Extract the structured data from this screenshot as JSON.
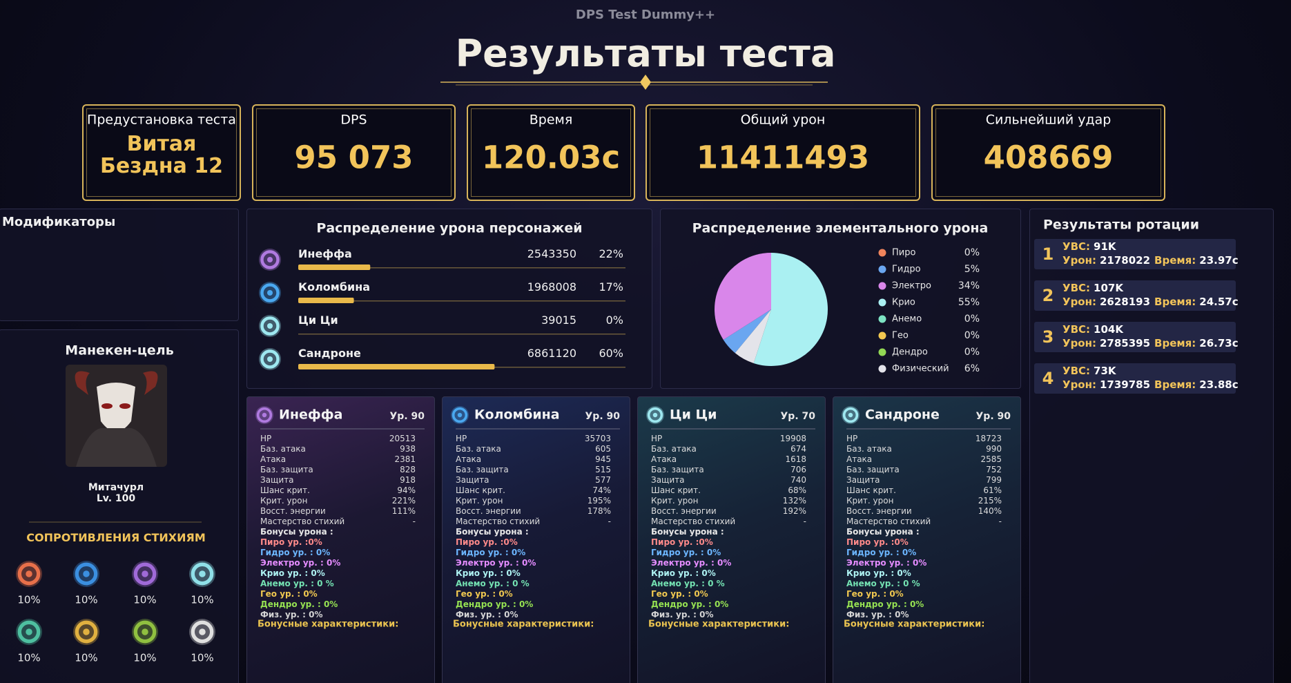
{
  "header": {
    "subtitle": "DPS Test Dummy++",
    "title": "Результаты теста"
  },
  "summary": [
    {
      "label": "Предустановка теста",
      "value": "Витая Бездна 12"
    },
    {
      "label": "DPS",
      "value": "95 073"
    },
    {
      "label": "Время",
      "value": "120.03с"
    },
    {
      "label": "Общий урон",
      "value": "11411493"
    },
    {
      "label": "Сильнейший удар",
      "value": "408669"
    }
  ],
  "modifiers": {
    "title": "Модификаторы"
  },
  "target": {
    "title": "Манекен-цель",
    "name": "Митачурл",
    "level": "Lv. 100",
    "resistances_title": "СОПРОТИВЛЕНИЯ СТИХИЯМ",
    "resistances": [
      "10%",
      "10%",
      "10%",
      "10%",
      "10%",
      "10%",
      "10%",
      "10%"
    ]
  },
  "damage_distribution": {
    "title": "Распределение урона персонажей",
    "bar_color": "#e9b94a",
    "rows": [
      {
        "name": "Инеффа",
        "damage": 2543350,
        "share": {
          "value": 22,
          "label": "22%"
        }
      },
      {
        "name": "Коломбина",
        "damage": 1968008,
        "share": {
          "value": 17,
          "label": "17%"
        }
      },
      {
        "name": "Ци Ци",
        "damage": 39015,
        "share": {
          "value": 0,
          "label": "0%"
        }
      },
      {
        "name": "Сандроне",
        "damage": 6861120,
        "share": {
          "value": 60,
          "label": "60%"
        }
      }
    ]
  },
  "elemental_distribution": {
    "title": "Распределение элементального урона",
    "items": [
      {
        "name": "Пиро",
        "color": "#f0845c",
        "share": {
          "value": 0,
          "label": "0%"
        }
      },
      {
        "name": "Гидро",
        "color": "#6aa6f0",
        "share": {
          "value": 5,
          "label": "5%"
        }
      },
      {
        "name": "Электро",
        "color": "#d986ea",
        "share": {
          "value": 34,
          "label": "34%"
        }
      },
      {
        "name": "Крио",
        "color": "#aaf0f2",
        "share": {
          "value": 55,
          "label": "55%"
        }
      },
      {
        "name": "Анемо",
        "color": "#7de3c3",
        "share": {
          "value": 0,
          "label": "0%"
        }
      },
      {
        "name": "Гео",
        "color": "#f2c850",
        "share": {
          "value": 0,
          "label": "0%"
        }
      },
      {
        "name": "Дендро",
        "color": "#92d854",
        "share": {
          "value": 0,
          "label": "0%"
        }
      },
      {
        "name": "Физический",
        "color": "#e4e4ea",
        "share": {
          "value": 6,
          "label": "6%"
        }
      }
    ]
  },
  "rotation": {
    "title": "Результаты ротации",
    "labels": {
      "dps": "УВС:",
      "damage": "Урон:",
      "time": "Время:"
    },
    "entries": [
      {
        "index": 1,
        "dps": "91K",
        "damage": 2178022,
        "time": "23.97с"
      },
      {
        "index": 2,
        "dps": "107K",
        "damage": 2628193,
        "time": "24.57с"
      },
      {
        "index": 3,
        "dps": "104K",
        "damage": 2785395,
        "time": "26.73с"
      },
      {
        "index": 4,
        "dps": "73K",
        "damage": 1739785,
        "time": "23.88с"
      }
    ]
  },
  "character_cards": {
    "stat_labels": [
      "HP",
      "Баз. атака",
      "Атака",
      "Баз. защита",
      "Защита",
      "Шанс крит.",
      "Крит. урон",
      "Восст. энергии",
      "Мастерство стихий"
    ],
    "damage_bonus_title": "Бонусы урона :",
    "damage_bonuses": [
      {
        "label": "Пиро ур. :0%",
        "color": "#ff8a8a"
      },
      {
        "label": "Гидро ур. : 0%",
        "color": "#6cb6ff"
      },
      {
        "label": "Электро ур. : 0%",
        "color": "#e58cff"
      },
      {
        "label": "Крио ур. : 0%",
        "color": "#aef2f2"
      },
      {
        "label": "Анемо ур. : 0 %",
        "color": "#74e2b2"
      },
      {
        "label": "Гео ур. : 0%",
        "color": "#f0c850"
      },
      {
        "label": "Дендро ур. : 0%",
        "color": "#96e252"
      },
      {
        "label": "Физ. ур. : 0%",
        "color": "#d4d4d4"
      }
    ],
    "bonus_stats_title": "Бонусные характеристики:",
    "cards": [
      {
        "name": "Инеффа",
        "level": "Ур. 90",
        "stats": [
          20513,
          938,
          2381,
          828,
          918,
          "94%",
          "221%",
          "111%",
          "-"
        ]
      },
      {
        "name": "Коломбина",
        "level": "Ур. 90",
        "stats": [
          35703,
          605,
          945,
          515,
          577,
          "74%",
          "195%",
          "178%",
          "-"
        ]
      },
      {
        "name": "Ци Ци",
        "level": "Ур. 70",
        "stats": [
          19908,
          674,
          1618,
          706,
          740,
          "68%",
          "132%",
          "192%",
          "-"
        ]
      },
      {
        "name": "Сандроне",
        "level": "Ур. 90",
        "stats": [
          18723,
          990,
          2585,
          752,
          799,
          "61%",
          "215%",
          "140%",
          "-"
        ]
      }
    ]
  }
}
